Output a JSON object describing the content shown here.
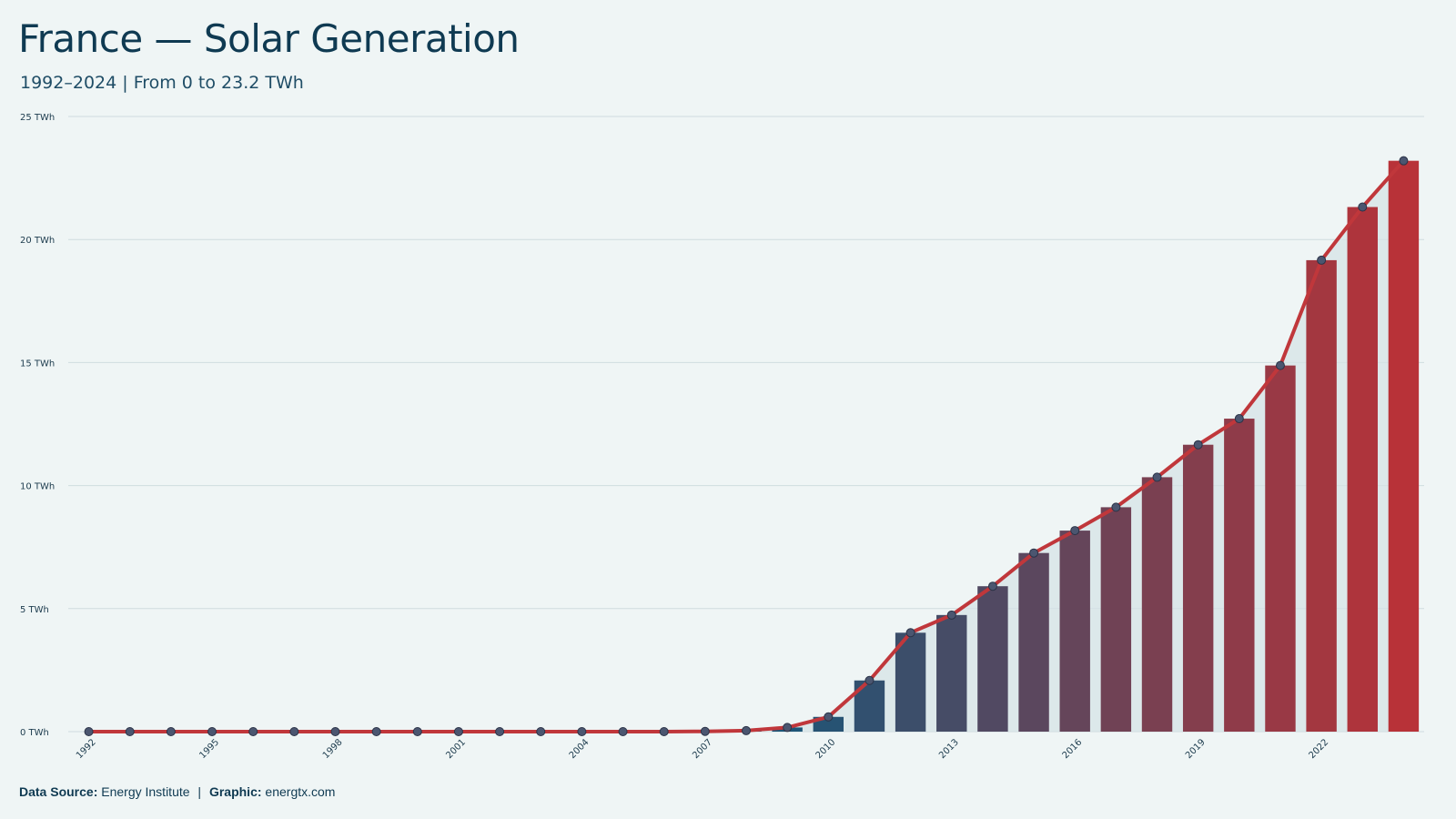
{
  "header": {
    "title": "France — Solar Generation",
    "subtitle": "1992–2024 | From 0 to 23.2 TWh"
  },
  "footer": {
    "source_label": "Data Source:",
    "source_value": "Energy Institute",
    "separator": "|",
    "graphic_label": "Graphic:",
    "graphic_value": "energtx.com"
  },
  "colors": {
    "background": "#eff5f5",
    "bar_start": "#1d5577",
    "bar_end": "#b83238",
    "line": "#c0373b",
    "marker_fill": "#4b5670",
    "gridline": "#cfdcdf",
    "area_fill": "#d4e2e6"
  },
  "chart_data": {
    "type": "bar",
    "x": [
      1992,
      1993,
      1994,
      1995,
      1996,
      1997,
      1998,
      1999,
      2000,
      2001,
      2002,
      2003,
      2004,
      2005,
      2006,
      2007,
      2008,
      2009,
      2010,
      2011,
      2012,
      2013,
      2014,
      2015,
      2016,
      2017,
      2018,
      2019,
      2020,
      2021,
      2022,
      2023,
      2024
    ],
    "values": [
      0,
      0,
      0,
      0,
      0,
      0,
      0,
      0,
      0,
      0,
      0,
      0,
      0,
      0,
      0,
      0.01,
      0.04,
      0.17,
      0.6,
      2.08,
      4.02,
      4.74,
      5.91,
      7.26,
      8.17,
      9.12,
      10.34,
      11.66,
      12.72,
      14.88,
      19.16,
      21.32,
      23.2
    ],
    "x_tick_labels": [
      "1992",
      "1995",
      "1998",
      "2001",
      "2004",
      "2007",
      "2010",
      "2013",
      "2016",
      "2019",
      "2022"
    ],
    "y_tick_labels": [
      "0 TWh",
      "5 TWh",
      "10 TWh",
      "15 TWh",
      "20 TWh",
      "25 TWh"
    ],
    "y_ticks": [
      0,
      5,
      10,
      15,
      20,
      25
    ],
    "ylim": [
      0,
      25
    ],
    "unit": "TWh",
    "grid": true,
    "overlay": "line with markers"
  }
}
